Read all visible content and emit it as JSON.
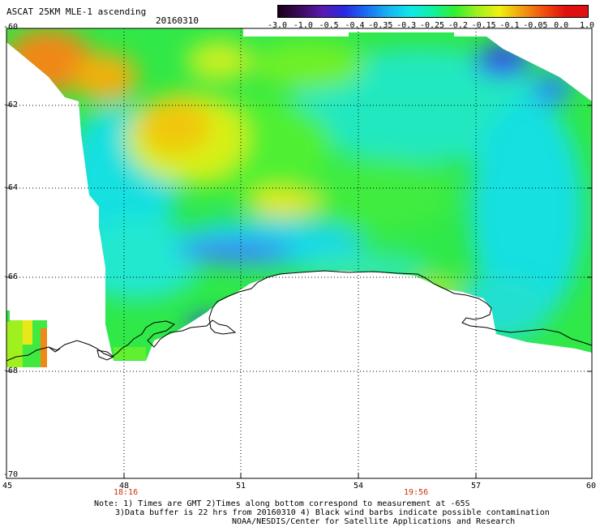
{
  "header": {
    "title": "ASCAT 25KM MLE-1 ascending",
    "date": "20160310"
  },
  "colorbar": {
    "labels": [
      "-3.0",
      "-1.0",
      "-0.5",
      "-0.4",
      "-0.35",
      "-0.3",
      "-0.25",
      "-0.2",
      "-0.15",
      "-0.1",
      "-0.05",
      "0.0",
      "1.0"
    ],
    "colors": [
      "#1a0018",
      "#3a0a5a",
      "#5a1ab0",
      "#2a28e0",
      "#1a6ef0",
      "#18b4f0",
      "#10e8e8",
      "#10f0a0",
      "#30f030",
      "#a0f020",
      "#f0f010",
      "#f0a010",
      "#f05010",
      "#e01010"
    ]
  },
  "map": {
    "lat_labels": [
      "-60",
      "-62",
      "-64",
      "-66",
      "-68",
      "-70"
    ],
    "lon_labels": [
      "45",
      "48",
      "51",
      "54",
      "57",
      "60"
    ],
    "time_labels": [
      "18:16",
      "19:56"
    ]
  },
  "notes": {
    "line1": "Note: 1) Times are GMT 2)Times along bottom correspond to measurement at -65S",
    "line2": "3)Data buffer is 22 hrs from 20160310 4) Black wind barbs indicate possible contamination",
    "line3": "NOAA/NESDIS/Center for Satellite Applications and Research"
  }
}
